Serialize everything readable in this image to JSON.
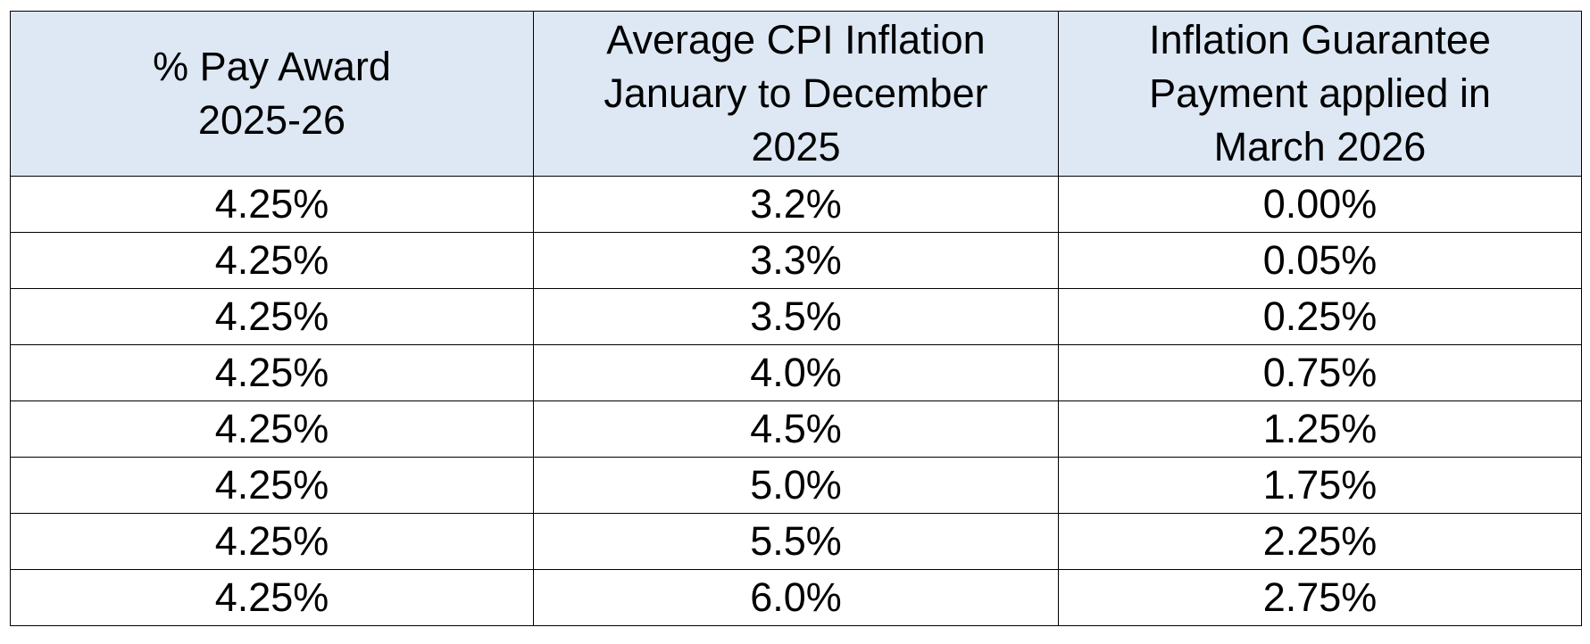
{
  "table": {
    "headers": [
      "% Pay Award\n2025-26",
      "Average CPI Inflation\nJanuary to December\n2025",
      "Inflation Guarantee\nPayment applied in\nMarch 2026"
    ],
    "rows": [
      [
        "4.25%",
        "3.2%",
        "0.00%"
      ],
      [
        "4.25%",
        "3.3%",
        "0.05%"
      ],
      [
        "4.25%",
        "3.5%",
        "0.25%"
      ],
      [
        "4.25%",
        "4.0%",
        "0.75%"
      ],
      [
        "4.25%",
        "4.5%",
        "1.25%"
      ],
      [
        "4.25%",
        "5.0%",
        "1.75%"
      ],
      [
        "4.25%",
        "5.5%",
        "2.25%"
      ],
      [
        "4.25%",
        "6.0%",
        "2.75%"
      ]
    ]
  },
  "colors": {
    "header_background": "#dde8f4",
    "border": "#000000",
    "text": "#000000"
  }
}
